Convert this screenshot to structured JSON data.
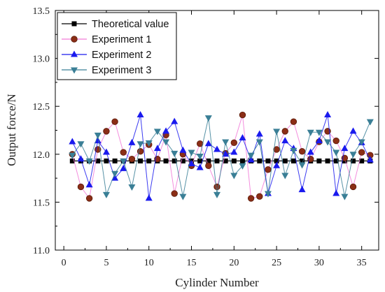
{
  "chart_data": {
    "type": "line",
    "title": "",
    "xlabel": "Cylinder Number",
    "ylabel": "Output force/N",
    "xlim": [
      -1,
      37
    ],
    "ylim": [
      11.0,
      13.5
    ],
    "xticks": [
      0,
      5,
      10,
      15,
      20,
      25,
      30,
      35
    ],
    "yticks": [
      11.0,
      11.5,
      12.0,
      12.5,
      13.0,
      13.5
    ],
    "grid": false,
    "legend_position": "top-left",
    "x": [
      1,
      2,
      3,
      4,
      5,
      6,
      7,
      8,
      9,
      10,
      11,
      12,
      13,
      14,
      15,
      16,
      17,
      18,
      19,
      20,
      21,
      22,
      23,
      24,
      25,
      26,
      27,
      28,
      29,
      30,
      31,
      32,
      33,
      34,
      35,
      36
    ],
    "series": [
      {
        "name": "Theoretical value",
        "marker": "square",
        "color": "#000000",
        "values": [
          11.93,
          11.93,
          11.93,
          11.93,
          11.93,
          11.93,
          11.93,
          11.93,
          11.93,
          11.93,
          11.93,
          11.93,
          11.93,
          11.93,
          11.93,
          11.93,
          11.93,
          11.93,
          11.93,
          11.93,
          11.93,
          11.93,
          11.93,
          11.93,
          11.93,
          11.93,
          11.93,
          11.93,
          11.93,
          11.93,
          11.93,
          11.93,
          11.93,
          11.93,
          11.93,
          11.93
        ]
      },
      {
        "name": "Experiment 1",
        "marker": "circle",
        "color": "#8b2e16",
        "line_color": "#f27ad8",
        "values": [
          12.0,
          11.66,
          11.54,
          12.05,
          12.24,
          12.34,
          12.02,
          11.95,
          12.03,
          12.1,
          11.95,
          12.2,
          11.59,
          12.0,
          11.88,
          12.11,
          11.88,
          11.66,
          12.01,
          12.12,
          12.41,
          11.54,
          11.56,
          11.84,
          12.05,
          12.24,
          12.34,
          12.03,
          11.95,
          12.13,
          12.24,
          12.14,
          11.96,
          11.66,
          12.02,
          11.99
        ]
      },
      {
        "name": "Experiment 2",
        "marker": "triangle-up",
        "color": "#1a1aee",
        "values": [
          12.13,
          11.95,
          11.68,
          12.14,
          12.02,
          11.75,
          11.85,
          12.12,
          12.41,
          11.54,
          12.06,
          12.24,
          12.34,
          12.04,
          11.9,
          11.86,
          12.11,
          12.05,
          12.0,
          12.02,
          12.17,
          11.94,
          12.21,
          11.59,
          11.88,
          12.14,
          12.06,
          11.63,
          12.02,
          12.14,
          12.41,
          11.59,
          12.06,
          12.24,
          12.12,
          11.94
        ]
      },
      {
        "name": "Experiment 3",
        "marker": "triangle-down",
        "color": "#3a7f96",
        "values": [
          11.99,
          12.11,
          11.93,
          12.2,
          11.58,
          11.8,
          11.93,
          11.66,
          12.11,
          12.12,
          12.24,
          12.13,
          12.01,
          11.56,
          12.02,
          11.98,
          12.38,
          11.58,
          12.13,
          11.78,
          11.88,
          11.99,
          12.13,
          11.59,
          12.24,
          11.78,
          12.04,
          11.89,
          12.23,
          12.23,
          12.13,
          12.02,
          11.56,
          12.0,
          12.13,
          12.34
        ]
      }
    ]
  }
}
